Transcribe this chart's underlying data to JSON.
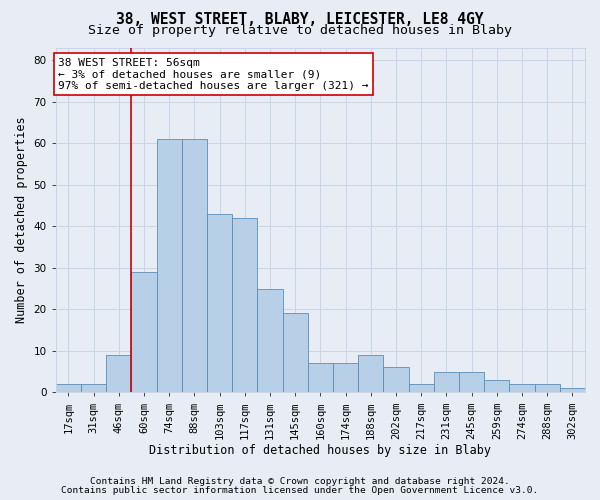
{
  "title_line1": "38, WEST STREET, BLABY, LEICESTER, LE8 4GY",
  "title_line2": "Size of property relative to detached houses in Blaby",
  "xlabel": "Distribution of detached houses by size in Blaby",
  "ylabel": "Number of detached properties",
  "categories": [
    "17sqm",
    "31sqm",
    "46sqm",
    "60sqm",
    "74sqm",
    "88sqm",
    "103sqm",
    "117sqm",
    "131sqm",
    "145sqm",
    "160sqm",
    "174sqm",
    "188sqm",
    "202sqm",
    "217sqm",
    "231sqm",
    "245sqm",
    "259sqm",
    "274sqm",
    "288sqm",
    "302sqm"
  ],
  "values": [
    2,
    2,
    9,
    29,
    61,
    61,
    43,
    42,
    25,
    19,
    7,
    7,
    9,
    6,
    2,
    5,
    5,
    3,
    2,
    2,
    1
  ],
  "bar_color": "#b8cfe8",
  "bar_edge_color": "#5b8db8",
  "vline_color": "#cc0000",
  "vline_x": 3.5,
  "annotation_line1": "38 WEST STREET: 56sqm",
  "annotation_line2": "← 3% of detached houses are smaller (9)",
  "annotation_line3": "97% of semi-detached houses are larger (321) →",
  "annotation_box_facecolor": "#ffffff",
  "annotation_box_edgecolor": "#cc0000",
  "ylim": [
    0,
    83
  ],
  "yticks": [
    0,
    10,
    20,
    30,
    40,
    50,
    60,
    70,
    80
  ],
  "grid_color": "#c8d4e8",
  "bg_color": "#e8edf5",
  "footer_line1": "Contains HM Land Registry data © Crown copyright and database right 2024.",
  "footer_line2": "Contains public sector information licensed under the Open Government Licence v3.0.",
  "title1_fontsize": 10.5,
  "title2_fontsize": 9.5,
  "axis_label_fontsize": 8.5,
  "tick_fontsize": 7.5,
  "annotation_fontsize": 8,
  "footer_fontsize": 6.8,
  "ylabel_fontsize": 8.5
}
